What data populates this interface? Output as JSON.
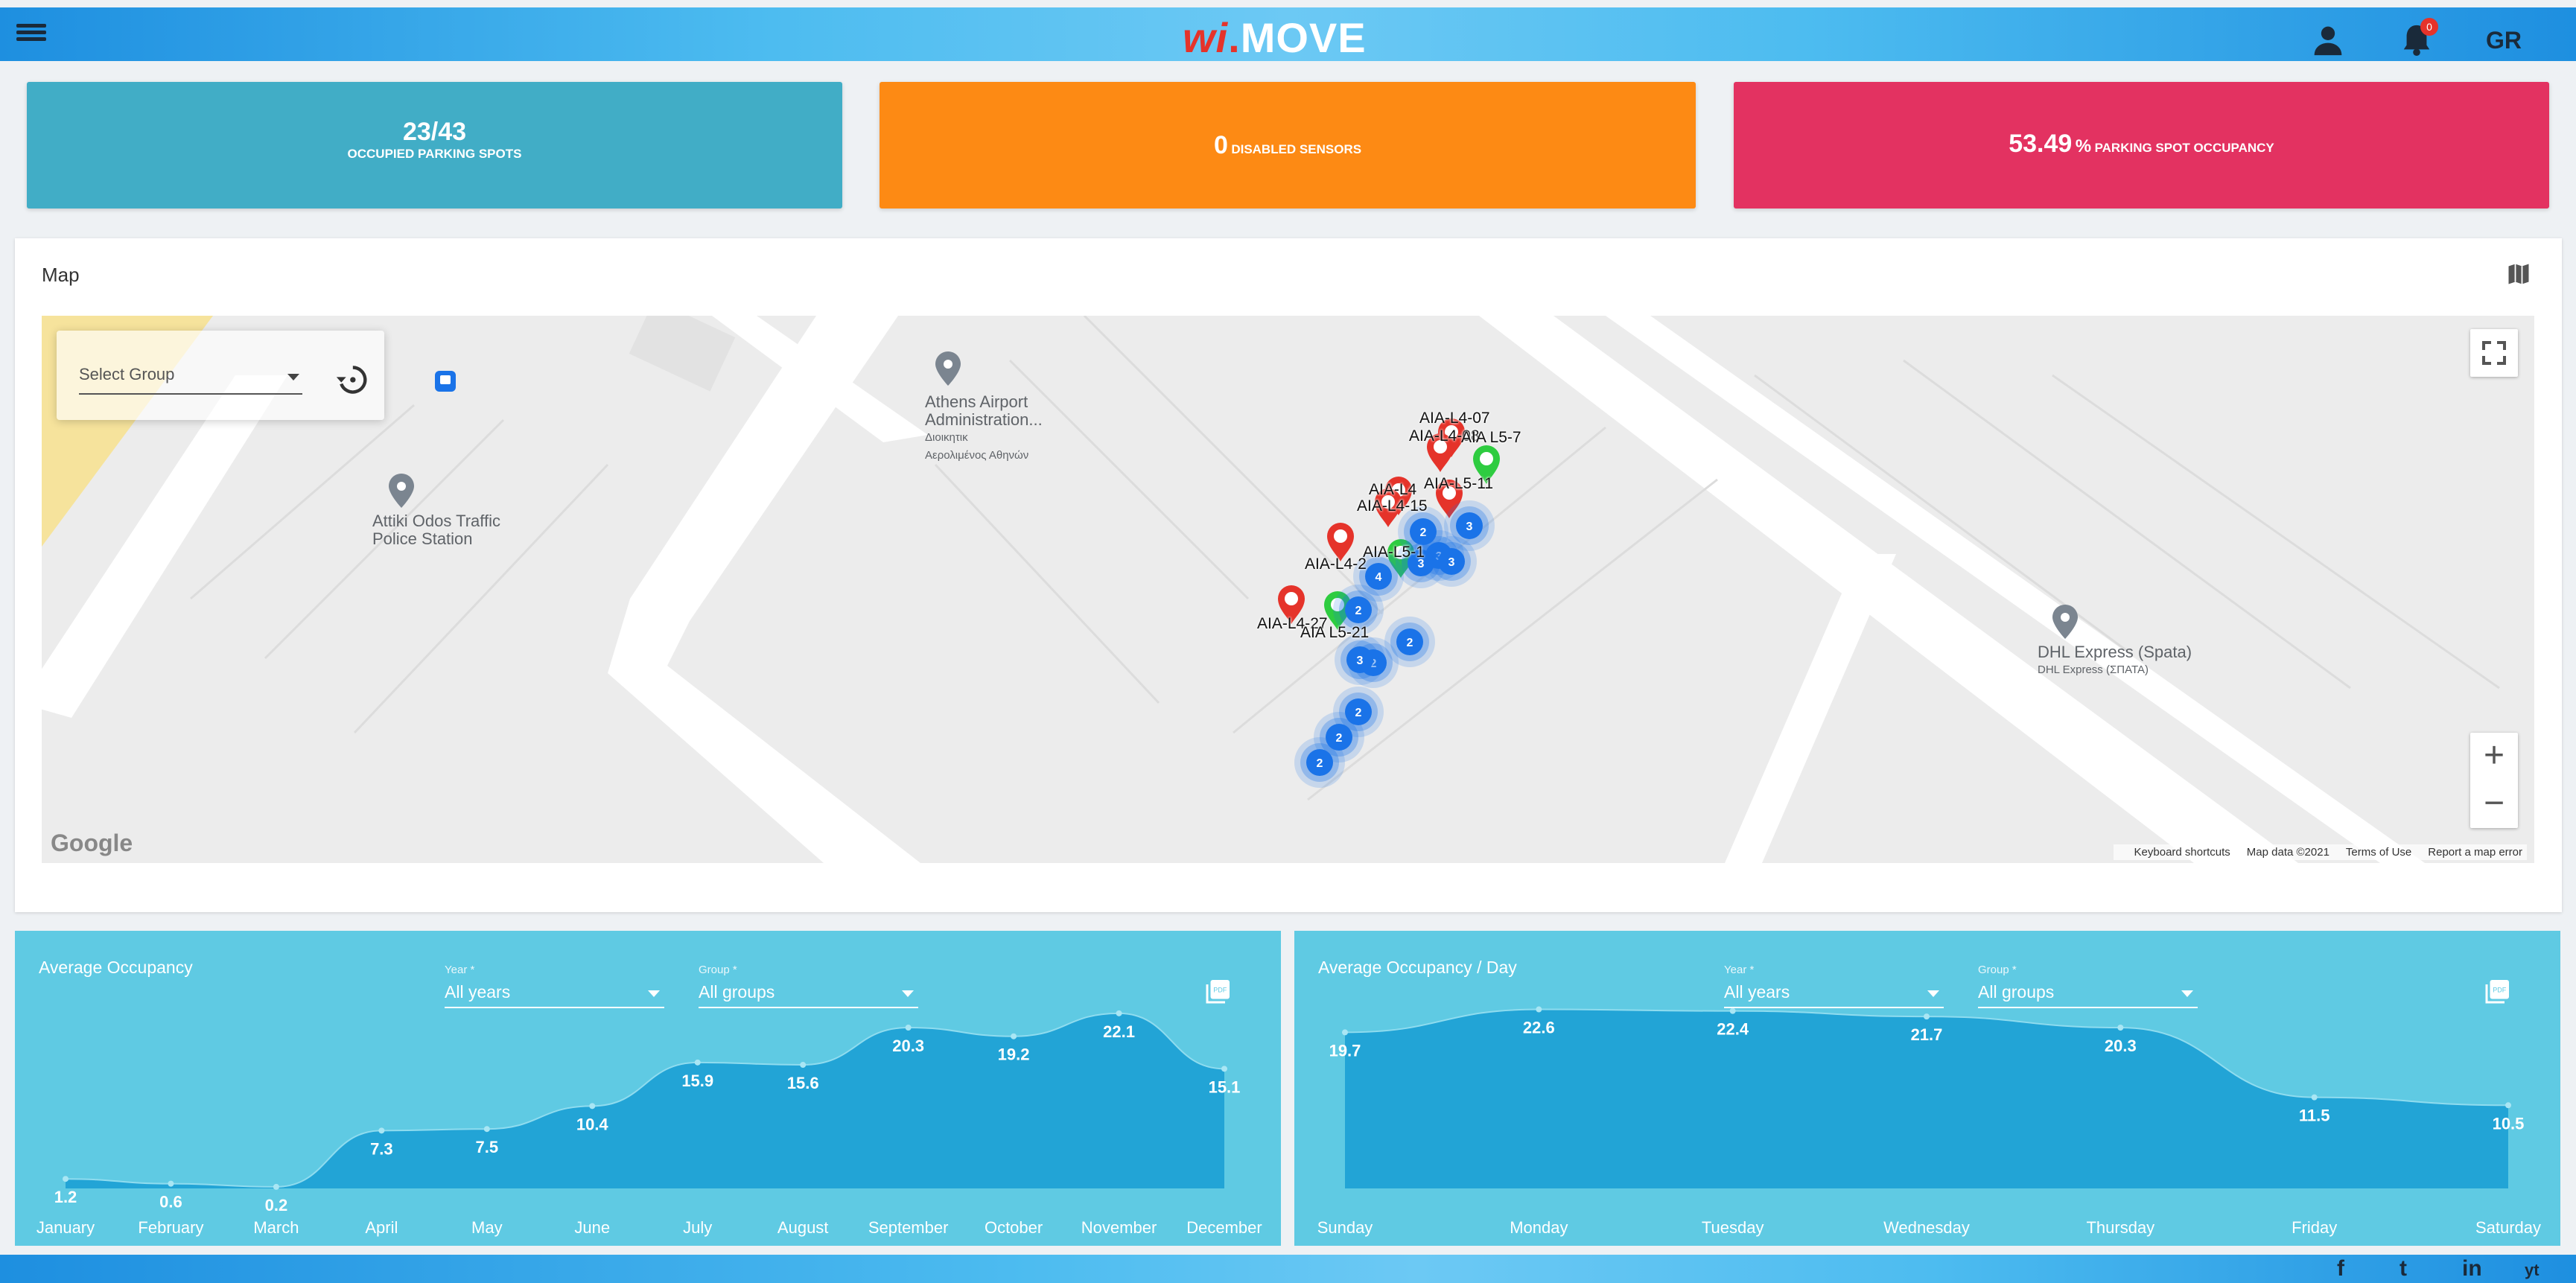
{
  "header": {
    "logo_wi": "wi",
    "logo_dot": ".",
    "logo_move": "MOVE",
    "notification_count": "0",
    "language": "GR"
  },
  "stats": [
    {
      "value": "23/43",
      "label": "OCCUPIED PARKING SPOTS",
      "color": "#41adc6"
    },
    {
      "value": "0",
      "label": "DISABLED SENSORS",
      "color": "#fd8a14"
    },
    {
      "value": "53.49",
      "unit": "%",
      "label": "PARKING SPOT OCCUPANCY",
      "color": "#e33261"
    }
  ],
  "map": {
    "title": "Map",
    "group_select_placeholder": "Select Group",
    "pois": [
      {
        "name": "Athens Airport",
        "line2": "Administration...",
        "sub1": "Διοικητικ",
        "sub2": "Αερολιμένος Αθηνών"
      },
      {
        "name": "Attiki Odos Traffic",
        "line2": "Police Station"
      },
      {
        "name": "DHL Express (Spata)",
        "sub1": "DHL Express (ΣΠΑΤΑ)"
      }
    ],
    "marker_labels": [
      "AIA-L4-07",
      "AIA-L4-08",
      "AIA L5-7",
      "AIA-L4",
      "AIA-L4-15",
      "AIA-L5-11",
      "AIA-L5-1",
      "AIA-L4-2",
      "AIA-L4-27",
      "AIA L5-21"
    ],
    "cluster_counts": [
      "3",
      "2",
      "3",
      "3",
      "4",
      "2",
      "3",
      "2",
      "3",
      "2",
      "2",
      "2",
      "2"
    ],
    "google": "Google",
    "footer": [
      "Keyboard shortcuts",
      "Map data ©2021",
      "Terms of Use",
      "Report a map error"
    ],
    "zoom_in": "+",
    "zoom_out": "−"
  },
  "charts": [
    {
      "title": "Average Occupancy",
      "year_label": "Year *",
      "year_value": "All years",
      "group_label": "Group *",
      "group_value": "All groups",
      "chart_data": {
        "type": "area",
        "categories": [
          "January",
          "February",
          "March",
          "April",
          "May",
          "June",
          "July",
          "August",
          "September",
          "October",
          "November",
          "December"
        ],
        "values": [
          1.2,
          0.6,
          0.2,
          7.3,
          7.5,
          10.4,
          15.9,
          15.6,
          20.3,
          19.2,
          22.1,
          15.1
        ],
        "ylim": [
          0,
          25
        ]
      }
    },
    {
      "title": "Average Occupancy / Day",
      "year_label": "Year *",
      "year_value": "All years",
      "group_label": "Group *",
      "group_value": "All groups",
      "chart_data": {
        "type": "area",
        "categories": [
          "Sunday",
          "Monday",
          "Tuesday",
          "Wednesday",
          "Thursday",
          "Friday",
          "Saturday"
        ],
        "values": [
          19.7,
          22.6,
          22.4,
          21.7,
          20.3,
          11.5,
          10.5
        ],
        "ylim": [
          0,
          25
        ]
      }
    }
  ],
  "footer": {
    "social": [
      "f",
      "t",
      "in",
      "yt"
    ]
  }
}
